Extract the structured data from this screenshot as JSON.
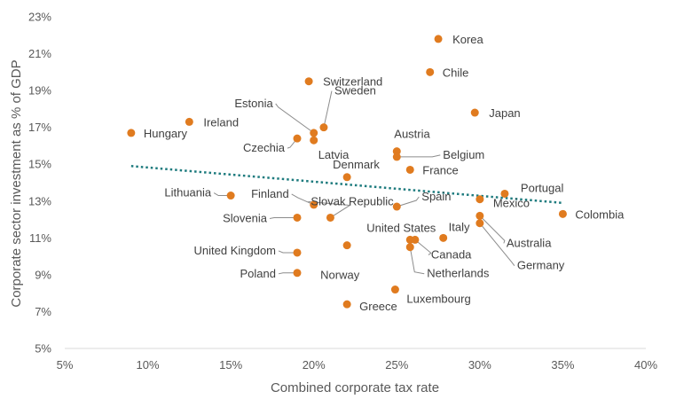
{
  "chart_data": {
    "type": "scatter",
    "xlabel": "Combined corporate tax rate",
    "ylabel": "Corporate sector investment as % of GDP",
    "xlim": [
      5,
      40
    ],
    "ylim": [
      5,
      23
    ],
    "x_ticks": [
      5,
      10,
      15,
      20,
      25,
      30,
      35,
      40
    ],
    "y_ticks": [
      5,
      7,
      9,
      11,
      13,
      15,
      17,
      19,
      21,
      23
    ],
    "x_tick_labels": [
      "5%",
      "10%",
      "15%",
      "20%",
      "25%",
      "30%",
      "35%",
      "40%"
    ],
    "y_tick_labels": [
      "5%",
      "7%",
      "9%",
      "11%",
      "13%",
      "15%",
      "17%",
      "19%",
      "21%",
      "23%"
    ],
    "grid": false,
    "legend": "none",
    "marker_color": "#E07B1F",
    "trendline": {
      "style": "dotted",
      "color": "#1E7B7E",
      "x": [
        9,
        35
      ],
      "y": [
        14.9,
        12.9
      ]
    },
    "points": [
      {
        "name": "Korea",
        "x": 27.5,
        "y": 21.8
      },
      {
        "name": "Chile",
        "x": 27.0,
        "y": 20.0
      },
      {
        "name": "Switzerland",
        "x": 19.7,
        "y": 19.5
      },
      {
        "name": "Japan",
        "x": 29.7,
        "y": 17.8
      },
      {
        "name": "Ireland",
        "x": 12.5,
        "y": 17.3
      },
      {
        "name": "Hungary",
        "x": 9.0,
        "y": 16.7
      },
      {
        "name": "Sweden",
        "x": 20.6,
        "y": 17.0
      },
      {
        "name": "Estonia",
        "x": 20.0,
        "y": 16.7
      },
      {
        "name": "Czechia",
        "x": 19.0,
        "y": 16.4
      },
      {
        "name": "Latvia",
        "x": 20.0,
        "y": 16.3
      },
      {
        "name": "Austria",
        "x": 25.0,
        "y": 15.7
      },
      {
        "name": "Belgium",
        "x": 25.0,
        "y": 15.4
      },
      {
        "name": "France",
        "x": 25.8,
        "y": 14.7
      },
      {
        "name": "Denmark",
        "x": 22.0,
        "y": 14.3
      },
      {
        "name": "Portugal",
        "x": 31.5,
        "y": 13.4
      },
      {
        "name": "Mexico",
        "x": 30.0,
        "y": 13.1
      },
      {
        "name": "Lithuania",
        "x": 15.0,
        "y": 13.3
      },
      {
        "name": "Finland",
        "x": 20.0,
        "y": 12.8
      },
      {
        "name": "Spain",
        "x": 25.0,
        "y": 12.7
      },
      {
        "name": "Colombia",
        "x": 35.0,
        "y": 12.3
      },
      {
        "name": "Slovak Republic",
        "x": 21.0,
        "y": 12.1
      },
      {
        "name": "Slovenia",
        "x": 19.0,
        "y": 12.1
      },
      {
        "name": "Australia",
        "x": 30.0,
        "y": 12.2
      },
      {
        "name": "Germany",
        "x": 30.0,
        "y": 11.8
      },
      {
        "name": "United States",
        "x": 25.8,
        "y": 10.9
      },
      {
        "name": "Canada",
        "x": 26.1,
        "y": 10.9
      },
      {
        "name": "Italy",
        "x": 27.8,
        "y": 11.0
      },
      {
        "name": "Netherlands",
        "x": 25.8,
        "y": 10.5
      },
      {
        "name": "Norway",
        "x": 22.0,
        "y": 10.6
      },
      {
        "name": "United Kingdom",
        "x": 19.0,
        "y": 10.2
      },
      {
        "name": "Poland",
        "x": 19.0,
        "y": 9.1
      },
      {
        "name": "Luxembourg",
        "x": 24.9,
        "y": 8.2
      },
      {
        "name": "Greece",
        "x": 22.0,
        "y": 7.4
      }
    ]
  }
}
